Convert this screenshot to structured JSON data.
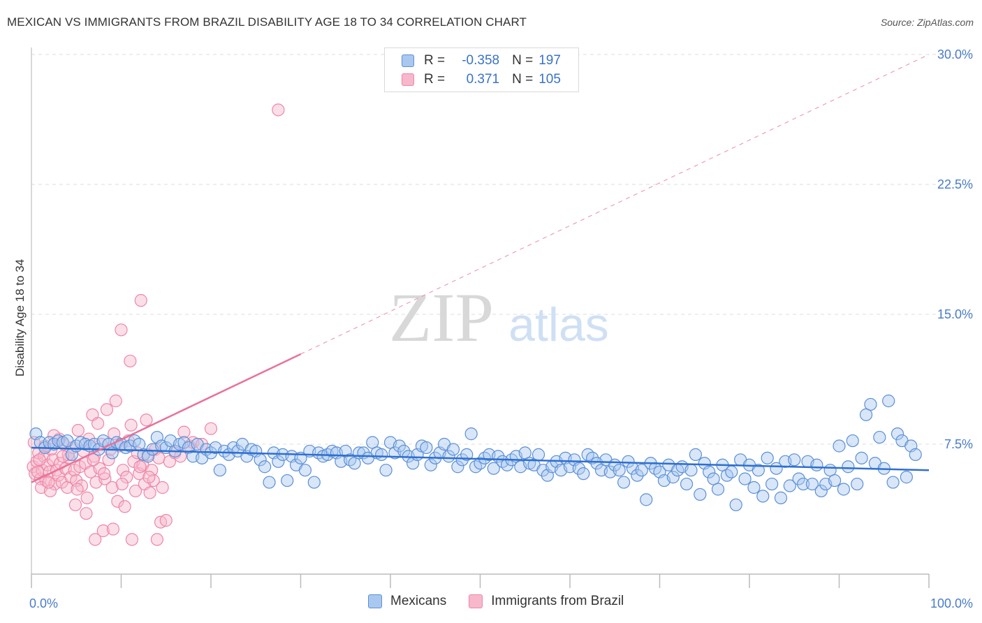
{
  "header": {
    "title": "MEXICAN VS IMMIGRANTS FROM BRAZIL DISABILITY AGE 18 TO 34 CORRELATION CHART",
    "source": "Source: ZipAtlas.com"
  },
  "watermark": {
    "zip": "ZIP",
    "atlas": "atlas"
  },
  "colors": {
    "blue_fill": "#a9c8f0",
    "blue_stroke": "#5b8fd6",
    "blue_line": "#2e6fd0",
    "pink_fill": "#f7b8cb",
    "pink_stroke": "#ee86a6",
    "pink_line": "#e8729a",
    "tick_text": "#4a7cc9",
    "grid": "#dddddd"
  },
  "legend": {
    "rows": [
      {
        "series": "Mexicans",
        "r_label": "R =",
        "r_value": "-0.358",
        "n_label": "N =",
        "n_value": "197"
      },
      {
        "series": "Immigrants from Brazil",
        "r_label": "R =",
        "r_value": "0.371",
        "n_label": "N =",
        "n_value": "105"
      }
    ]
  },
  "chart_data": {
    "type": "scatter",
    "title": "MEXICAN VS IMMIGRANTS FROM BRAZIL DISABILITY AGE 18 TO 34 CORRELATION CHART",
    "xlabel": "",
    "ylabel": "Disability Age 18 to 34",
    "xlim": [
      0,
      100
    ],
    "ylim": [
      0,
      30
    ],
    "x_tick_labels": [
      "0.0%",
      "100.0%"
    ],
    "y_ticks": [
      7.5,
      15.0,
      22.5,
      30.0
    ],
    "y_tick_labels": [
      "7.5%",
      "15.0%",
      "22.5%",
      "30.0%"
    ],
    "legend_position": "bottom-center",
    "series": [
      {
        "name": "Mexicans",
        "r": -0.358,
        "n": 197,
        "trend": {
          "x": [
            0,
            100
          ],
          "y": [
            7.3,
            6.0
          ]
        },
        "points": [
          [
            0.5,
            8.1
          ],
          [
            1.0,
            7.6
          ],
          [
            1.5,
            7.3
          ],
          [
            2.0,
            7.6
          ],
          [
            2.5,
            7.5
          ],
          [
            3.0,
            7.7
          ],
          [
            3.5,
            7.6
          ],
          [
            4.0,
            7.7
          ],
          [
            4.5,
            6.9
          ],
          [
            5.0,
            7.4
          ],
          [
            5.5,
            7.6
          ],
          [
            6.0,
            7.5
          ],
          [
            6.5,
            7.4
          ],
          [
            7.0,
            7.5
          ],
          [
            7.5,
            7.2
          ],
          [
            8.0,
            7.7
          ],
          [
            8.6,
            7.5
          ],
          [
            9.0,
            7.0
          ],
          [
            9.5,
            7.6
          ],
          [
            10.0,
            7.5
          ],
          [
            10.5,
            7.3
          ],
          [
            11.0,
            7.4
          ],
          [
            11.5,
            7.7
          ],
          [
            12.0,
            7.5
          ],
          [
            12.5,
            6.9
          ],
          [
            13.0,
            6.8
          ],
          [
            13.5,
            7.2
          ],
          [
            14.0,
            7.9
          ],
          [
            14.5,
            7.4
          ],
          [
            15.0,
            7.3
          ],
          [
            15.5,
            7.7
          ],
          [
            16.0,
            7.1
          ],
          [
            16.5,
            7.5
          ],
          [
            17.0,
            7.6
          ],
          [
            17.5,
            7.3
          ],
          [
            18.0,
            6.8
          ],
          [
            18.5,
            7.5
          ],
          [
            19.0,
            6.7
          ],
          [
            19.5,
            7.2
          ],
          [
            20.0,
            7.0
          ],
          [
            20.5,
            7.3
          ],
          [
            21.0,
            6.0
          ],
          [
            21.5,
            7.1
          ],
          [
            22.0,
            6.9
          ],
          [
            22.5,
            7.3
          ],
          [
            23.0,
            7.1
          ],
          [
            23.5,
            7.5
          ],
          [
            24.0,
            6.8
          ],
          [
            24.5,
            7.2
          ],
          [
            25.0,
            7.1
          ],
          [
            25.5,
            6.6
          ],
          [
            26.0,
            6.2
          ],
          [
            26.5,
            5.3
          ],
          [
            27.0,
            7.0
          ],
          [
            27.5,
            6.5
          ],
          [
            28.0,
            6.9
          ],
          [
            28.5,
            5.4
          ],
          [
            29.0,
            6.8
          ],
          [
            29.5,
            6.3
          ],
          [
            30.0,
            6.7
          ],
          [
            30.5,
            6.0
          ],
          [
            31.0,
            7.1
          ],
          [
            31.5,
            5.3
          ],
          [
            32.0,
            7.0
          ],
          [
            32.5,
            6.8
          ],
          [
            33.0,
            6.9
          ],
          [
            33.5,
            7.1
          ],
          [
            34.0,
            7.0
          ],
          [
            34.5,
            6.5
          ],
          [
            35.0,
            7.1
          ],
          [
            35.5,
            6.6
          ],
          [
            36.0,
            6.4
          ],
          [
            36.5,
            7.0
          ],
          [
            37.0,
            7.0
          ],
          [
            37.5,
            6.7
          ],
          [
            38.0,
            7.6
          ],
          [
            38.5,
            7.0
          ],
          [
            39.0,
            6.9
          ],
          [
            39.5,
            6.0
          ],
          [
            40.0,
            7.6
          ],
          [
            40.5,
            7.0
          ],
          [
            41.0,
            7.4
          ],
          [
            41.5,
            7.1
          ],
          [
            42.0,
            6.8
          ],
          [
            42.5,
            6.4
          ],
          [
            43.0,
            6.9
          ],
          [
            43.5,
            7.4
          ],
          [
            44.0,
            7.3
          ],
          [
            44.5,
            6.3
          ],
          [
            45.0,
            6.7
          ],
          [
            45.5,
            7.0
          ],
          [
            46.0,
            7.5
          ],
          [
            46.5,
            6.8
          ],
          [
            47.0,
            7.2
          ],
          [
            47.5,
            6.2
          ],
          [
            48.0,
            6.6
          ],
          [
            48.5,
            6.9
          ],
          [
            49.0,
            8.1
          ],
          [
            49.5,
            6.2
          ],
          [
            50.0,
            6.4
          ],
          [
            50.5,
            6.7
          ],
          [
            51.0,
            6.9
          ],
          [
            51.5,
            6.1
          ],
          [
            52.0,
            6.8
          ],
          [
            52.5,
            6.5
          ],
          [
            53.0,
            6.3
          ],
          [
            53.5,
            6.6
          ],
          [
            54.0,
            6.8
          ],
          [
            54.5,
            6.2
          ],
          [
            55.0,
            7.0
          ],
          [
            55.5,
            6.4
          ],
          [
            56.0,
            6.3
          ],
          [
            56.5,
            6.9
          ],
          [
            57.0,
            6.0
          ],
          [
            57.5,
            5.7
          ],
          [
            58.0,
            6.2
          ],
          [
            58.5,
            6.5
          ],
          [
            59.0,
            6.0
          ],
          [
            59.5,
            6.7
          ],
          [
            60.0,
            6.2
          ],
          [
            60.5,
            6.6
          ],
          [
            61.0,
            6.1
          ],
          [
            61.5,
            5.8
          ],
          [
            62.0,
            6.9
          ],
          [
            62.5,
            6.7
          ],
          [
            63.0,
            6.4
          ],
          [
            63.5,
            6.0
          ],
          [
            64.0,
            6.6
          ],
          [
            64.5,
            5.9
          ],
          [
            65.0,
            6.3
          ],
          [
            65.5,
            6.0
          ],
          [
            66.0,
            5.3
          ],
          [
            66.5,
            6.5
          ],
          [
            67.0,
            6.1
          ],
          [
            67.5,
            5.7
          ],
          [
            68.0,
            6.0
          ],
          [
            68.5,
            4.3
          ],
          [
            69.0,
            6.4
          ],
          [
            69.5,
            6.1
          ],
          [
            70.0,
            5.9
          ],
          [
            70.5,
            5.4
          ],
          [
            71.0,
            6.3
          ],
          [
            71.5,
            5.6
          ],
          [
            72.0,
            6.0
          ],
          [
            72.5,
            6.2
          ],
          [
            73.0,
            5.2
          ],
          [
            73.5,
            6.0
          ],
          [
            74.0,
            6.9
          ],
          [
            74.5,
            4.6
          ],
          [
            75.0,
            6.4
          ],
          [
            75.5,
            5.9
          ],
          [
            76.0,
            5.5
          ],
          [
            76.5,
            4.9
          ],
          [
            77.0,
            6.3
          ],
          [
            77.5,
            5.7
          ],
          [
            78.0,
            5.9
          ],
          [
            78.5,
            4.0
          ],
          [
            79.0,
            6.6
          ],
          [
            79.5,
            5.5
          ],
          [
            80.0,
            6.3
          ],
          [
            80.5,
            5.0
          ],
          [
            81.0,
            6.0
          ],
          [
            81.5,
            4.5
          ],
          [
            82.0,
            6.7
          ],
          [
            82.5,
            5.2
          ],
          [
            83.0,
            6.1
          ],
          [
            83.5,
            4.4
          ],
          [
            84.0,
            6.5
          ],
          [
            84.5,
            5.1
          ],
          [
            85.0,
            6.6
          ],
          [
            85.5,
            5.5
          ],
          [
            86.0,
            5.2
          ],
          [
            86.5,
            6.5
          ],
          [
            87.0,
            5.2
          ],
          [
            87.5,
            6.3
          ],
          [
            88.0,
            4.8
          ],
          [
            88.5,
            5.2
          ],
          [
            89.0,
            6.0
          ],
          [
            89.5,
            5.4
          ],
          [
            90.0,
            7.4
          ],
          [
            90.5,
            4.9
          ],
          [
            91.0,
            6.2
          ],
          [
            91.5,
            7.7
          ],
          [
            92.0,
            5.2
          ],
          [
            92.5,
            6.7
          ],
          [
            93.0,
            9.2
          ],
          [
            93.5,
            9.8
          ],
          [
            94.0,
            6.4
          ],
          [
            94.5,
            7.9
          ],
          [
            95.0,
            6.1
          ],
          [
            95.5,
            10.0
          ],
          [
            96.0,
            5.3
          ],
          [
            96.5,
            8.1
          ],
          [
            97.0,
            7.7
          ],
          [
            97.5,
            5.6
          ],
          [
            98.0,
            7.4
          ],
          [
            98.5,
            6.9
          ]
        ]
      },
      {
        "name": "Immigrants from Brazil",
        "r": 0.371,
        "n": 105,
        "trend": {
          "x": [
            0,
            30
          ],
          "y": [
            5.3,
            12.7
          ]
        },
        "trend_extended": {
          "x": [
            30,
            100
          ],
          "y": [
            12.7,
            30.0
          ]
        },
        "points": [
          [
            0.2,
            6.2
          ],
          [
            0.4,
            5.8
          ],
          [
            0.6,
            6.5
          ],
          [
            0.8,
            7.0
          ],
          [
            1.0,
            5.5
          ],
          [
            1.2,
            6.0
          ],
          [
            1.4,
            6.8
          ],
          [
            1.6,
            5.4
          ],
          [
            1.8,
            6.3
          ],
          [
            2.0,
            5.9
          ],
          [
            2.2,
            7.2
          ],
          [
            2.4,
            6.6
          ],
          [
            2.6,
            5.2
          ],
          [
            2.8,
            6.0
          ],
          [
            3.0,
            5.7
          ],
          [
            3.2,
            6.4
          ],
          [
            3.4,
            5.3
          ],
          [
            3.6,
            7.5
          ],
          [
            3.8,
            6.1
          ],
          [
            4.0,
            5.0
          ],
          [
            4.2,
            6.7
          ],
          [
            4.4,
            5.6
          ],
          [
            4.6,
            7.3
          ],
          [
            4.8,
            6.0
          ],
          [
            5.0,
            5.4
          ],
          [
            5.2,
            8.3
          ],
          [
            5.4,
            6.2
          ],
          [
            5.6,
            5.1
          ],
          [
            5.8,
            7.1
          ],
          [
            6.0,
            6.4
          ],
          [
            6.2,
            4.4
          ],
          [
            6.4,
            7.8
          ],
          [
            6.6,
            5.9
          ],
          [
            6.8,
            9.2
          ],
          [
            7.0,
            6.8
          ],
          [
            7.2,
            5.3
          ],
          [
            7.4,
            8.7
          ],
          [
            7.6,
            6.1
          ],
          [
            7.8,
            7.5
          ],
          [
            8.0,
            2.5
          ],
          [
            8.2,
            5.5
          ],
          [
            8.4,
            9.5
          ],
          [
            8.6,
            6.6
          ],
          [
            8.8,
            7.2
          ],
          [
            9.0,
            5.0
          ],
          [
            9.2,
            8.1
          ],
          [
            9.4,
            10.0
          ],
          [
            9.6,
            4.2
          ],
          [
            9.8,
            7.4
          ],
          [
            10.0,
            14.1
          ],
          [
            10.2,
            6.0
          ],
          [
            10.4,
            3.9
          ],
          [
            10.6,
            5.6
          ],
          [
            10.8,
            7.7
          ],
          [
            11.0,
            12.3
          ],
          [
            11.2,
            2.0
          ],
          [
            11.4,
            6.5
          ],
          [
            11.6,
            4.8
          ],
          [
            11.8,
            7.0
          ],
          [
            12.0,
            5.8
          ],
          [
            12.2,
            15.8
          ],
          [
            12.4,
            6.3
          ],
          [
            12.6,
            5.2
          ],
          [
            12.8,
            8.9
          ],
          [
            13.0,
            6.9
          ],
          [
            13.2,
            4.7
          ],
          [
            13.4,
            6.0
          ],
          [
            13.6,
            5.4
          ],
          [
            13.8,
            7.2
          ],
          [
            14.0,
            2.0
          ],
          [
            14.2,
            6.7
          ],
          [
            14.4,
            3.0
          ],
          [
            14.6,
            5.0
          ],
          [
            15.0,
            3.1
          ],
          [
            15.4,
            6.5
          ],
          [
            16.0,
            7.0
          ],
          [
            16.6,
            6.8
          ],
          [
            17.0,
            8.2
          ],
          [
            17.6,
            7.4
          ],
          [
            18.0,
            7.6
          ],
          [
            1.1,
            5.0
          ],
          [
            2.1,
            4.8
          ],
          [
            3.1,
            7.8
          ],
          [
            4.1,
            6.9
          ],
          [
            5.1,
            4.9
          ],
          [
            6.1,
            3.5
          ],
          [
            7.1,
            2.0
          ],
          [
            8.1,
            5.8
          ],
          [
            9.1,
            2.6
          ],
          [
            10.1,
            5.2
          ],
          [
            11.1,
            8.6
          ],
          [
            12.1,
            6.2
          ],
          [
            13.1,
            5.6
          ],
          [
            2.5,
            8.0
          ],
          [
            3.5,
            6.8
          ],
          [
            1.5,
            7.4
          ],
          [
            0.9,
            6.6
          ],
          [
            1.9,
            5.3
          ],
          [
            4.9,
            4.0
          ],
          [
            6.9,
            6.6
          ],
          [
            27.5,
            26.8
          ],
          [
            19.0,
            7.5
          ],
          [
            20.0,
            8.4
          ],
          [
            0.3,
            7.6
          ],
          [
            0.7,
            5.9
          ]
        ]
      }
    ]
  }
}
